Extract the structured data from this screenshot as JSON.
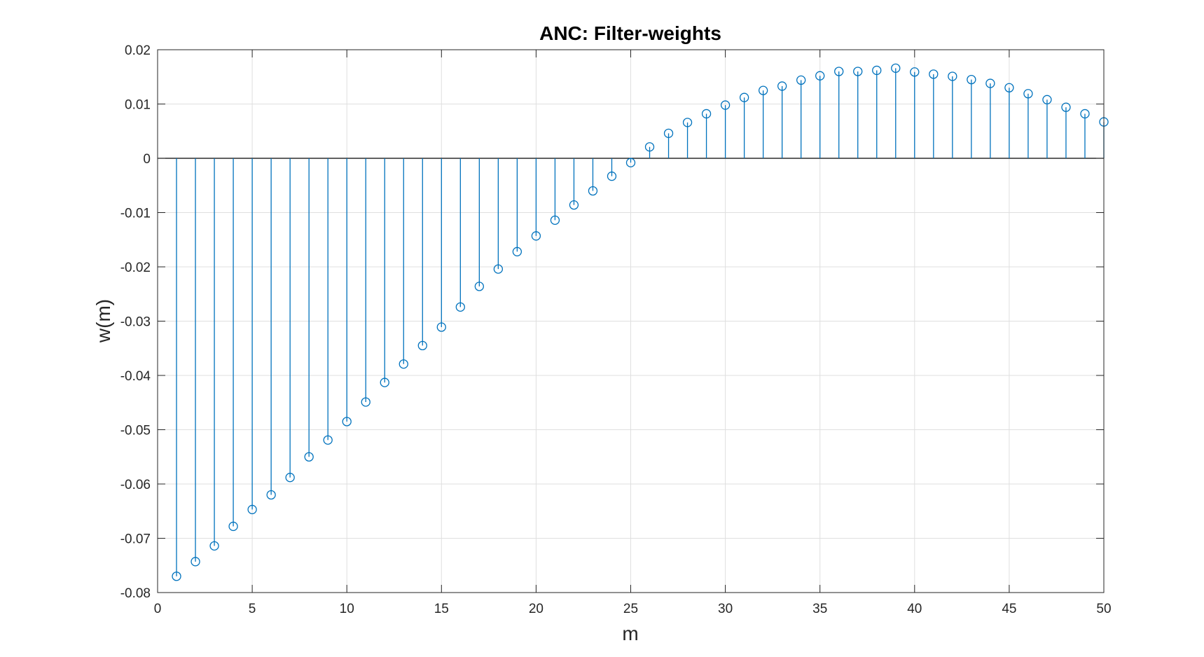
{
  "chart_data": {
    "type": "stem",
    "title": "ANC: Filter-weights",
    "xlabel": "m",
    "ylabel": "w(m)",
    "xlim": [
      0,
      50
    ],
    "ylim": [
      -0.08,
      0.02
    ],
    "xticks": [
      0,
      5,
      10,
      15,
      20,
      25,
      30,
      35,
      40,
      45,
      50
    ],
    "xtick_labels": [
      "0",
      "5",
      "10",
      "15",
      "20",
      "25",
      "30",
      "35",
      "40",
      "45",
      "50"
    ],
    "yticks": [
      0.02,
      0.01,
      0,
      -0.01,
      -0.02,
      -0.03,
      -0.04,
      -0.05,
      -0.06,
      -0.07,
      -0.08
    ],
    "ytick_labels": [
      "0.02",
      "0.01",
      "0",
      "-0.01",
      "-0.02",
      "-0.03",
      "-0.04",
      "-0.05",
      "-0.06",
      "-0.07",
      "-0.08"
    ],
    "grid": true,
    "marker": "circle-open",
    "series_color": "#0072BD",
    "grid_color": "#dfdfdf",
    "axis_color": "#262626",
    "x": [
      1,
      2,
      3,
      4,
      5,
      6,
      7,
      8,
      9,
      10,
      11,
      12,
      13,
      14,
      15,
      16,
      17,
      18,
      19,
      20,
      21,
      22,
      23,
      24,
      25,
      26,
      27,
      28,
      29,
      30,
      31,
      32,
      33,
      34,
      35,
      36,
      37,
      38,
      39,
      40,
      41,
      42,
      43,
      44,
      45,
      46,
      47,
      48,
      49,
      50
    ],
    "values": [
      -0.077,
      -0.0743,
      -0.0714,
      -0.0678,
      -0.0647,
      -0.062,
      -0.0588,
      -0.055,
      -0.0519,
      -0.0485,
      -0.0449,
      -0.0413,
      -0.0379,
      -0.0345,
      -0.0311,
      -0.0274,
      -0.0236,
      -0.0204,
      -0.0172,
      -0.0143,
      -0.0114,
      -0.0086,
      -0.006,
      -0.0033,
      -0.0008,
      0.0021,
      0.0046,
      0.0066,
      0.0082,
      0.0098,
      0.0112,
      0.0125,
      0.0133,
      0.0144,
      0.0152,
      0.016,
      0.016,
      0.0162,
      0.0166,
      0.0159,
      0.0155,
      0.0151,
      0.0145,
      0.0138,
      0.013,
      0.0119,
      0.0108,
      0.0094,
      0.0082,
      0.0067
    ]
  }
}
